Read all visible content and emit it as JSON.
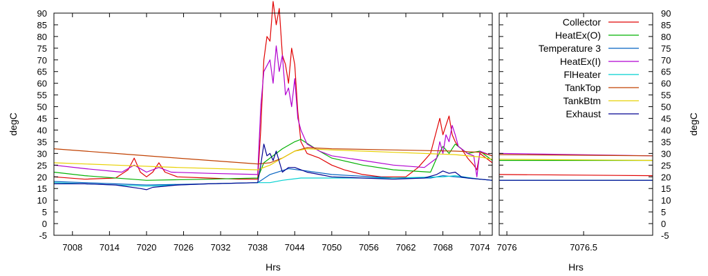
{
  "chart_data": [
    {
      "type": "line",
      "xlabel": "Hrs",
      "ylabel": "degC",
      "xlim": [
        7005,
        7076
      ],
      "ylim": [
        -5,
        90
      ],
      "xticks": [
        7008,
        7014,
        7020,
        7026,
        7032,
        7038,
        7044,
        7050,
        7056,
        7062,
        7068,
        7074
      ],
      "yticks": [
        -5,
        0,
        5,
        10,
        15,
        20,
        25,
        30,
        35,
        40,
        45,
        50,
        55,
        60,
        65,
        70,
        75,
        80,
        85,
        90
      ],
      "grid": false,
      "series": [
        {
          "name": "Collector",
          "color": "#e00000",
          "x": [
            7005,
            7010,
            7015,
            7017,
            7018,
            7019,
            7020,
            7021,
            7022,
            7023,
            7025,
            7030,
            7035,
            7038,
            7038.5,
            7039,
            7039.5,
            7040,
            7040.5,
            7041,
            7041.5,
            7042,
            7042.5,
            7043,
            7043.5,
            7044,
            7044.5,
            7045,
            7046,
            7048,
            7050,
            7052,
            7055,
            7058,
            7062,
            7064,
            7066,
            7067,
            7067.5,
            7068,
            7068.5,
            7069,
            7069.5,
            7070,
            7070.5,
            7071,
            7072,
            7073,
            7073.5,
            7074,
            7075,
            7076
          ],
          "y": [
            20,
            19,
            19.5,
            23,
            28,
            22,
            20,
            22,
            26,
            22,
            20,
            19.5,
            19,
            19,
            40,
            70,
            80,
            78,
            95,
            85,
            92,
            72,
            68,
            60,
            75,
            68,
            48,
            35,
            30,
            28,
            25,
            23,
            21,
            20,
            20,
            24,
            30,
            40,
            45,
            38,
            42,
            46,
            38,
            35,
            33,
            32,
            28,
            25,
            23,
            30,
            28,
            26
          ]
        },
        {
          "name": "HeatEx(O)",
          "color": "#00b000",
          "x": [
            7005,
            7010,
            7020,
            7030,
            7038,
            7039,
            7040,
            7042,
            7044,
            7045,
            7048,
            7050,
            7055,
            7060,
            7066,
            7067,
            7068,
            7069,
            7070,
            7071,
            7072,
            7074,
            7076
          ],
          "y": [
            22,
            20.5,
            18.5,
            19,
            19.5,
            26,
            28,
            32,
            35,
            36,
            31,
            28,
            25,
            23,
            22,
            28,
            33,
            30,
            34,
            32,
            30,
            31,
            27
          ]
        },
        {
          "name": "Temperature 3",
          "color": "#0060c0",
          "x": [
            7005,
            7010,
            7020,
            7030,
            7038,
            7040,
            7043,
            7046,
            7050,
            7060,
            7066,
            7068,
            7070,
            7072,
            7074,
            7076
          ],
          "y": [
            18,
            17.5,
            16.5,
            17,
            17.5,
            21,
            23.5,
            22.5,
            21,
            19.5,
            19.5,
            20.5,
            20,
            19.5,
            19,
            18.5
          ]
        },
        {
          "name": "HeatEx(I)",
          "color": "#b000d0",
          "x": [
            7005,
            7010,
            7016,
            7018,
            7020,
            7022,
            7024,
            7030,
            7038,
            7038.5,
            7039,
            7040,
            7040.5,
            7041,
            7041.5,
            7042,
            7042.5,
            7043,
            7043.5,
            7044,
            7044.5,
            7045,
            7046,
            7048,
            7050,
            7055,
            7060,
            7065,
            7067,
            7067.5,
            7068,
            7068.5,
            7069,
            7069.5,
            7070,
            7070.5,
            7071,
            7072,
            7073,
            7073.5,
            7074,
            7075,
            7076
          ],
          "y": [
            25,
            23.5,
            22,
            25,
            22,
            24,
            22,
            21.5,
            21,
            50,
            65,
            70,
            60,
            76,
            65,
            72,
            55,
            58,
            50,
            62,
            45,
            40,
            34,
            31,
            29,
            27,
            25,
            24,
            28,
            35,
            30,
            38,
            35,
            42,
            38,
            33,
            32,
            30,
            29,
            20,
            31,
            30,
            29
          ]
        },
        {
          "name": "FlHeater",
          "color": "#00d0d0",
          "x": [
            7005,
            7010,
            7020,
            7030,
            7038,
            7040,
            7042,
            7045,
            7050,
            7060,
            7068,
            7070,
            7074,
            7076
          ],
          "y": [
            17.5,
            17,
            16,
            17,
            17.5,
            17.5,
            18.5,
            19.5,
            19.5,
            19.5,
            20,
            20.5,
            19,
            18.5
          ]
        },
        {
          "name": "TankTop",
          "color": "#c04000",
          "x": [
            7005,
            7015,
            7025,
            7038,
            7040,
            7042,
            7044,
            7046,
            7050,
            7060,
            7070,
            7074,
            7076
          ],
          "y": [
            32,
            30,
            28,
            25.5,
            26,
            28,
            31,
            32.5,
            32,
            31.5,
            31,
            30.5,
            29
          ]
        },
        {
          "name": "TankBtm",
          "color": "#e8d000",
          "x": [
            7005,
            7015,
            7025,
            7038,
            7040,
            7042,
            7044,
            7046,
            7050,
            7060,
            7070,
            7074,
            7076
          ],
          "y": [
            26,
            25,
            24,
            23,
            25,
            28,
            31,
            32,
            31.5,
            30.5,
            29.5,
            28.5,
            27.5
          ]
        },
        {
          "name": "Exhaust",
          "color": "#000090",
          "x": [
            7005,
            7010,
            7015,
            7019,
            7020,
            7021,
            7025,
            7030,
            7038,
            7038.5,
            7039,
            7039.5,
            7040,
            7040.5,
            7041,
            7042,
            7043,
            7044,
            7045,
            7046,
            7048,
            7050,
            7055,
            7060,
            7065,
            7067,
            7068,
            7069,
            7070,
            7071,
            7072,
            7074,
            7076
          ],
          "y": [
            17,
            17,
            16.5,
            15,
            14.5,
            15.5,
            16.5,
            17,
            17.5,
            25,
            34,
            29,
            30,
            27,
            31,
            22,
            24,
            24,
            23,
            22,
            21,
            20,
            19.5,
            19,
            19.5,
            21,
            22.5,
            21.5,
            22,
            20,
            19.5,
            19,
            18.5
          ]
        }
      ]
    },
    {
      "type": "line",
      "xlabel": "Hrs",
      "ylabel": "degC",
      "xlim": [
        7075.95,
        7076.95
      ],
      "ylim": [
        -5,
        90
      ],
      "xticks": [
        7076,
        7076.5
      ],
      "yticks": [
        -5,
        0,
        5,
        10,
        15,
        20,
        25,
        30,
        35,
        40,
        45,
        50,
        55,
        60,
        65,
        70,
        75,
        80,
        85,
        90
      ],
      "legend": "top-right",
      "grid": false,
      "series": [
        {
          "name": "Collector",
          "color": "#e00000",
          "x": [
            7075.95,
            7076.95
          ],
          "y": [
            21,
            20.5
          ]
        },
        {
          "name": "HeatEx(O)",
          "color": "#00b000",
          "x": [
            7075.95,
            7076.95
          ],
          "y": [
            27,
            27
          ]
        },
        {
          "name": "Temperature 3",
          "color": "#0060c0",
          "x": [
            7075.95,
            7076.95
          ],
          "y": [
            18.5,
            18.5
          ]
        },
        {
          "name": "HeatEx(I)",
          "color": "#b000d0",
          "x": [
            7075.95,
            7076.95
          ],
          "y": [
            30,
            29
          ]
        },
        {
          "name": "FlHeater",
          "color": "#00d0d0",
          "x": [
            7075.95,
            7076.95
          ],
          "y": [
            18.5,
            18.5
          ]
        },
        {
          "name": "TankTop",
          "color": "#c04000",
          "x": [
            7075.95,
            7076.95
          ],
          "y": [
            29.5,
            29
          ]
        },
        {
          "name": "TankBtm",
          "color": "#e8d000",
          "x": [
            7075.95,
            7076.95
          ],
          "y": [
            27.5,
            27
          ]
        },
        {
          "name": "Exhaust",
          "color": "#000090",
          "x": [
            7075.95,
            7076.95
          ],
          "y": [
            18.5,
            18.5
          ]
        }
      ]
    }
  ]
}
